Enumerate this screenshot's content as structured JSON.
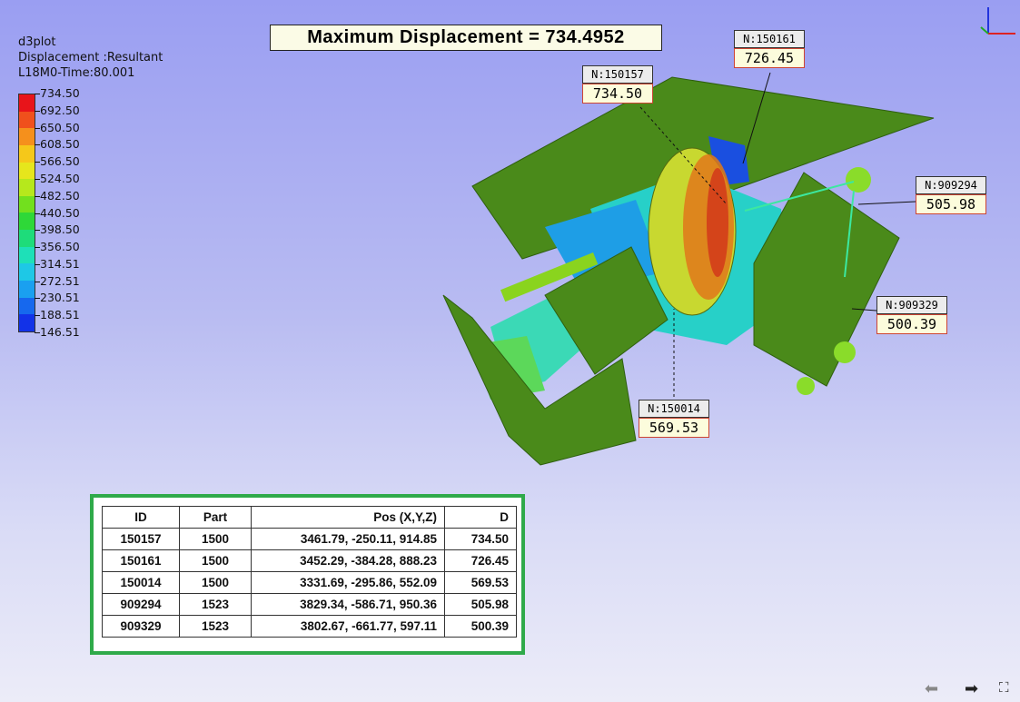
{
  "header": {
    "line1": "d3plot",
    "line2": "Displacement :Resultant",
    "line3": "L18M0-Time:80.001"
  },
  "legend": {
    "labels": [
      "734.50",
      "692.50",
      "650.50",
      "608.50",
      "566.50",
      "524.50",
      "482.50",
      "440.50",
      "398.50",
      "356.50",
      "314.51",
      "272.51",
      "230.51",
      "188.51",
      "146.51"
    ],
    "colors": [
      "#e8141a",
      "#f0501c",
      "#f5901c",
      "#f5c81a",
      "#e6e61c",
      "#b6e81c",
      "#72e01e",
      "#2ed838",
      "#1edc7a",
      "#1ee0b8",
      "#1ec8e6",
      "#1aa0f0",
      "#1668ee",
      "#1232e8"
    ]
  },
  "title": "Maximum Displacement = 734.4952",
  "callouts": [
    {
      "id": "N:150161",
      "value": "726.45"
    },
    {
      "id": "N:150157",
      "value": "734.50"
    },
    {
      "id": "N:909294",
      "value": "505.98"
    },
    {
      "id": "N:909329",
      "value": "500.39"
    },
    {
      "id": "N:150014",
      "value": "569.53"
    }
  ],
  "table": {
    "headers": [
      "ID",
      "Part",
      "Pos (X,Y,Z)",
      "D"
    ],
    "rows": [
      [
        "150157",
        "1500",
        "3461.79, -250.11, 914.85",
        "734.50"
      ],
      [
        "150161",
        "1500",
        "3452.29, -384.28, 888.23",
        "726.45"
      ],
      [
        "150014",
        "1500",
        "3331.69, -295.86, 552.09",
        "569.53"
      ],
      [
        "909294",
        "1523",
        "3829.34, -586.71, 950.36",
        "505.98"
      ],
      [
        "909329",
        "1523",
        "3802.67, -661.77, 597.11",
        "500.39"
      ]
    ]
  },
  "nav": {
    "prev": "⬅",
    "next": "➡",
    "fullscreen": "⛶"
  }
}
